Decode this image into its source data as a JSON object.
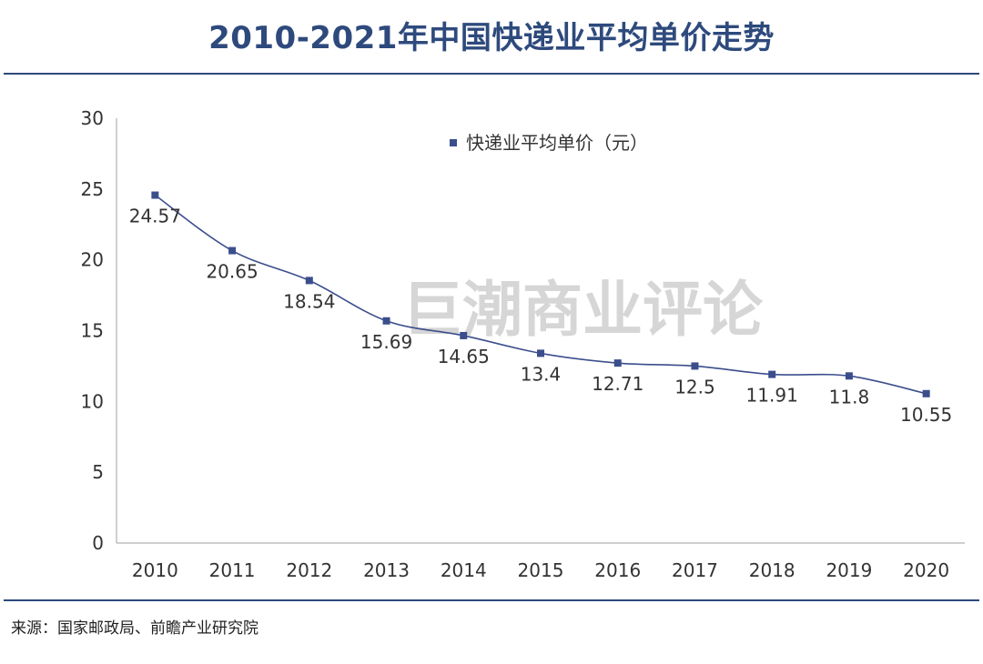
{
  "title": "2010-2021年中国快递业平均单价走势",
  "source": "来源：国家邮政局、前瞻产业研究院",
  "watermark": "巨潮商业评论",
  "colors": {
    "accent": "#2E4A7D",
    "series": "#3B4E8C"
  },
  "chart_data": {
    "type": "line",
    "title": "2010-2021年中国快递业平均单价走势",
    "xlabel": "",
    "ylabel": "",
    "categories": [
      "2010",
      "2011",
      "2012",
      "2013",
      "2014",
      "2015",
      "2016",
      "2017",
      "2018",
      "2019",
      "2020"
    ],
    "series": [
      {
        "name": "快递业平均单价（元）",
        "values": [
          24.57,
          20.65,
          18.54,
          15.69,
          14.65,
          13.4,
          12.71,
          12.5,
          11.91,
          11.8,
          10.55
        ],
        "labels": [
          "24.57",
          "20.65",
          "18.54",
          "15.69",
          "14.65",
          "13.4",
          "12.71",
          "12.5",
          "11.91",
          "11.8",
          "10.55"
        ]
      }
    ],
    "ylim": [
      0,
      30
    ],
    "yticks": [
      "0",
      "5",
      "10",
      "15",
      "20",
      "25",
      "30"
    ],
    "grid": false,
    "legend": "top-center",
    "marker": "square",
    "smooth": true
  }
}
